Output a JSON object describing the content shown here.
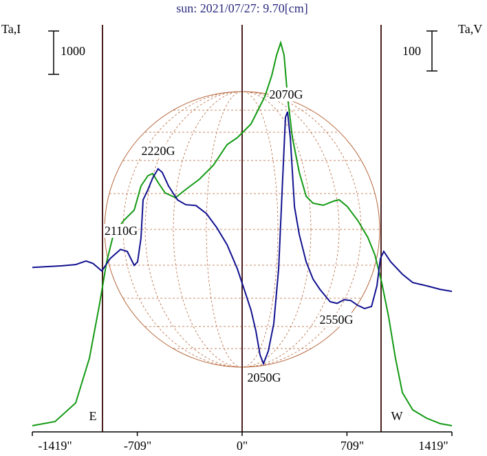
{
  "chart_data": {
    "type": "line",
    "title": "sun: 2021/07/27: 9.70[cm]",
    "y_label": "Ta,I",
    "y2_label": "Ta,V",
    "y_scale_bar": 1000,
    "y2_scale_bar": 100,
    "xlim": [
      -1419,
      1419
    ],
    "xticks": [
      {
        "value": -1419,
        "label": "-1419\""
      },
      {
        "value": -709,
        "label": "-709\""
      },
      {
        "value": 0,
        "label": "0\""
      },
      {
        "value": 709,
        "label": "709\""
      },
      {
        "value": 1419,
        "label": "1419\""
      }
    ],
    "ylim": [
      0,
      9500
    ],
    "y2lim": [
      -450,
      580
    ],
    "annotations": [
      "2110G",
      "2220G",
      "2070G",
      "2050G",
      "2550G",
      "E",
      "W"
    ],
    "series": [
      {
        "name": "I",
        "color": "#119911",
        "x": [
          -1419,
          -1265,
          -1126,
          -1033,
          -963,
          -916,
          -870,
          -800,
          -730,
          -684,
          -637,
          -605,
          -568,
          -521,
          -451,
          -381,
          -288,
          -195,
          -102,
          -33,
          14,
          60,
          107,
          154,
          200,
          233,
          261,
          284,
          307,
          340,
          386,
          433,
          479,
          549,
          619,
          656,
          712,
          782,
          851,
          898,
          944,
          991,
          1037,
          1084,
          1154,
          1247,
          1340,
          1419
        ],
        "values": [
          143,
          239,
          668,
          1703,
          2976,
          3930,
          4567,
          4885,
          5124,
          5681,
          5920,
          5967,
          5760,
          5522,
          5410,
          5601,
          5840,
          6158,
          6635,
          6795,
          6954,
          7113,
          7431,
          7749,
          8227,
          8704,
          8990,
          8704,
          7749,
          6795,
          5999,
          5442,
          5283,
          5235,
          5331,
          5363,
          5203,
          4885,
          4487,
          4089,
          3453,
          2657,
          1703,
          907,
          509,
          318,
          191,
          143
        ]
      },
      {
        "name": "V",
        "color": "#10108f",
        "axis": "y2",
        "x": [
          -1419,
          -1312,
          -1219,
          -1126,
          -1056,
          -1009,
          -949,
          -893,
          -823,
          -777,
          -730,
          -707,
          -684,
          -670,
          -637,
          -605,
          -568,
          -540,
          -498,
          -437,
          -381,
          -312,
          -242,
          -172,
          -102,
          -33,
          14,
          60,
          93,
          121,
          144,
          177,
          214,
          247,
          270,
          293,
          307,
          326,
          354,
          386,
          433,
          479,
          526,
          595,
          642,
          689,
          735,
          782,
          828,
          875,
          912,
          935,
          958,
          1005,
          1084,
          1154,
          1247,
          1340,
          1419
        ],
        "values": [
          -38,
          -36,
          -34,
          -31,
          -22,
          -28,
          -47,
          -16,
          7,
          2,
          -33,
          -24,
          36,
          131,
          157,
          186,
          209,
          200,
          166,
          131,
          119,
          117,
          97,
          62,
          19,
          -41,
          -93,
          -145,
          -197,
          -257,
          -279,
          -248,
          -179,
          -41,
          148,
          338,
          352,
          286,
          114,
          45,
          -24,
          -67,
          -93,
          -124,
          -128,
          -119,
          -121,
          -133,
          -141,
          -136,
          -84,
          -16,
          2,
          -24,
          -55,
          -76,
          -84,
          -93,
          -98
        ]
      }
    ]
  }
}
